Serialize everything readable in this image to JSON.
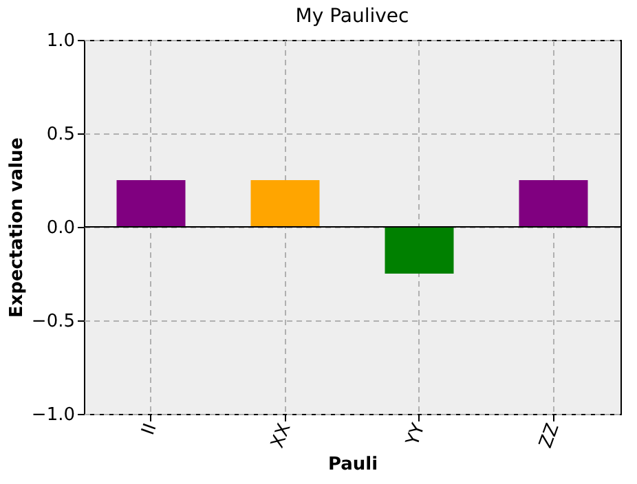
{
  "chart_data": {
    "type": "bar",
    "title": "My Paulivec",
    "xlabel": "Pauli",
    "ylabel": "Expectation value",
    "categories": [
      "II",
      "XX",
      "YY",
      "ZZ"
    ],
    "values": [
      0.25,
      0.25,
      -0.25,
      0.25
    ],
    "colors": [
      "#800080",
      "#ffa500",
      "#008000",
      "#800080"
    ],
    "ylim": [
      -1.0,
      1.0
    ],
    "yticks": [
      {
        "value": -1.0,
        "label": "−1.0"
      },
      {
        "value": -0.5,
        "label": "−0.5"
      },
      {
        "value": 0.0,
        "label": "0.0"
      },
      {
        "value": 0.5,
        "label": "0.5"
      },
      {
        "value": 1.0,
        "label": "1.0"
      }
    ],
    "grid": true,
    "ref_lines": [
      {
        "axis": "y",
        "value": 0.0,
        "color": "#000000"
      }
    ]
  }
}
